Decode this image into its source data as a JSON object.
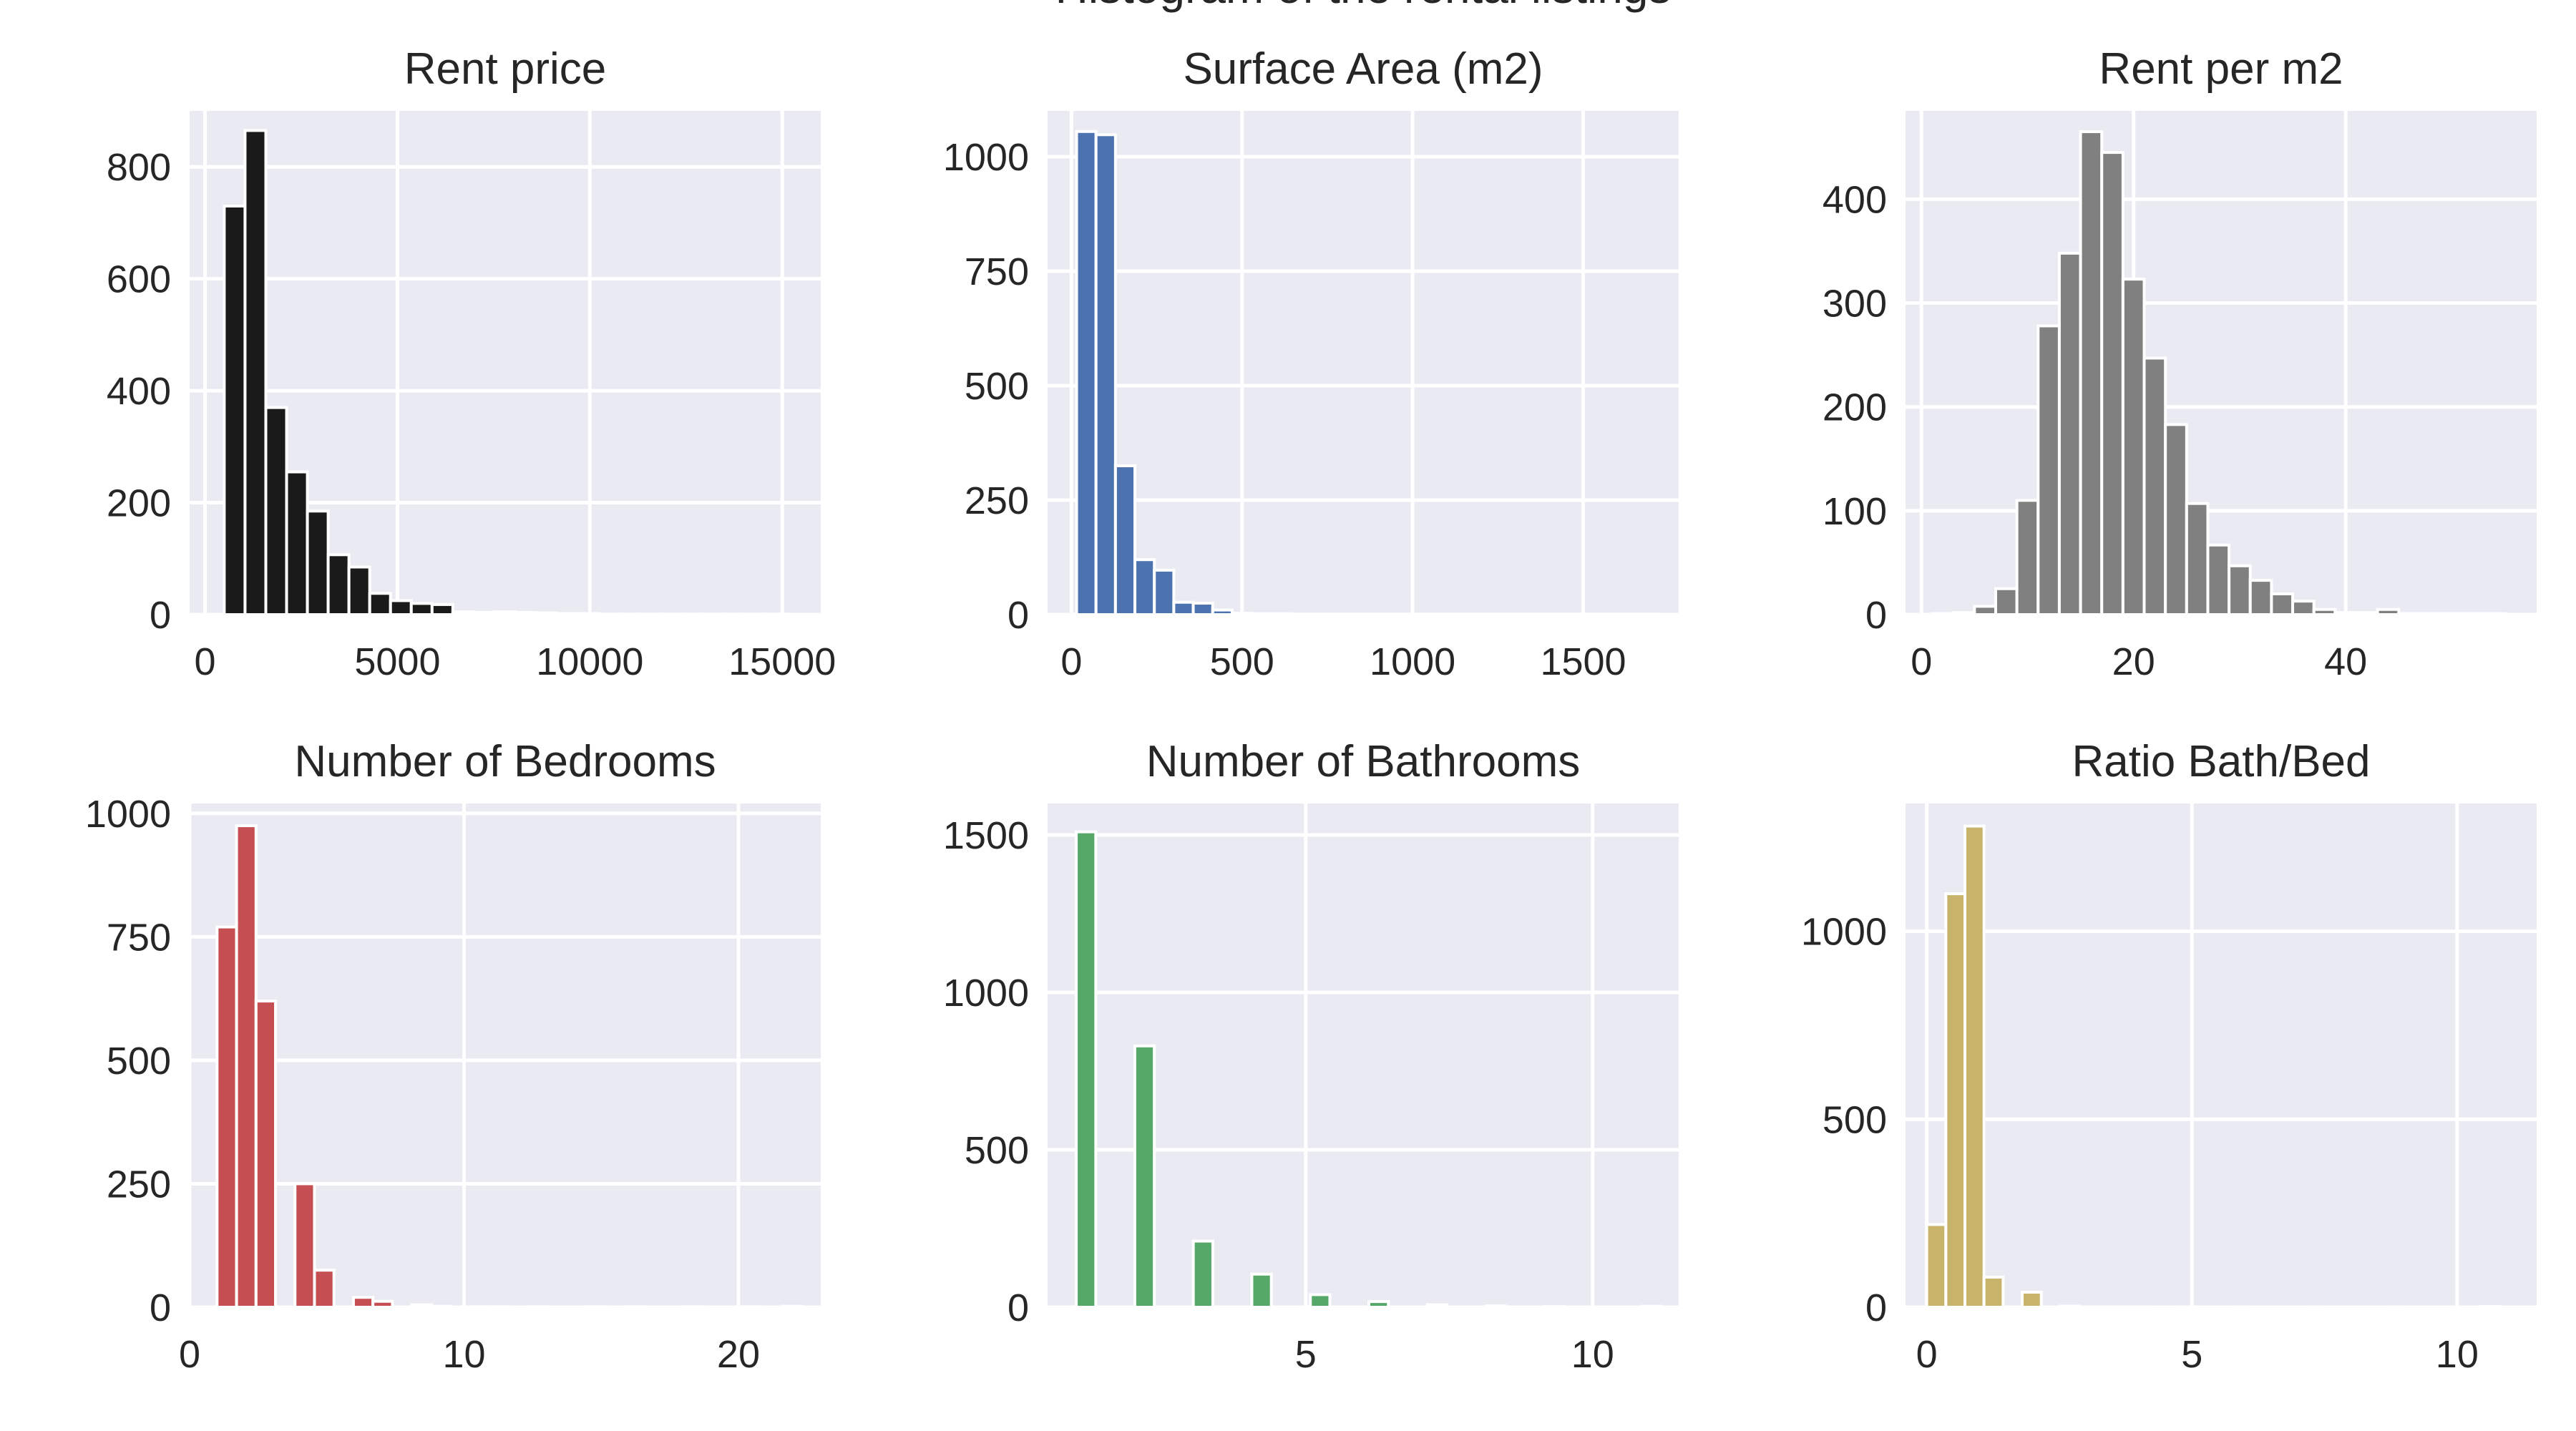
{
  "figure_title": "Histogram of the rental listings",
  "chart_data": [
    {
      "type": "bar",
      "title": "Rent price",
      "color": "#1a1a1a",
      "bin_width": 540,
      "bins": [
        500,
        1040,
        1580,
        2120,
        2660,
        3200,
        3740,
        4280,
        4820,
        5360,
        5900,
        6440,
        6980,
        7520,
        8060,
        8600,
        9140,
        9680,
        10220,
        10760,
        11300,
        11840,
        12380,
        12920,
        13460,
        14000,
        14540
      ],
      "values": [
        730,
        865,
        370,
        255,
        185,
        107,
        85,
        38,
        25,
        20,
        18,
        5,
        4,
        5,
        4,
        3,
        2,
        2,
        1,
        1,
        1,
        1,
        1,
        1,
        1,
        1,
        1
      ],
      "xlim": [
        -400,
        16000
      ],
      "ylim": [
        0,
        900
      ],
      "xticks": [
        0,
        5000,
        10000,
        15000
      ],
      "yticks": [
        0,
        200,
        400,
        600,
        800
      ]
    },
    {
      "type": "bar",
      "title": "Surface Area (m2)",
      "color": "#4c72b0",
      "bin_width": 57,
      "bins": [
        15,
        72,
        129,
        186,
        243,
        300,
        357,
        414,
        471,
        528,
        585,
        642,
        699,
        756,
        813,
        870,
        927,
        984,
        1041,
        1098,
        1155,
        1212,
        1269,
        1326,
        1383,
        1440,
        1497,
        1554,
        1611,
        1668
      ],
      "values": [
        1055,
        1048,
        325,
        120,
        97,
        27,
        25,
        10,
        3,
        2,
        2,
        1,
        1,
        1,
        1,
        1,
        1,
        1,
        1,
        1,
        1,
        1,
        1,
        1,
        1,
        1,
        1,
        1,
        1,
        1
      ],
      "xlim": [
        -70,
        1780
      ],
      "ylim": [
        0,
        1100
      ],
      "xticks": [
        0,
        500,
        1000,
        1500
      ],
      "yticks": [
        0,
        250,
        500,
        750,
        1000
      ]
    },
    {
      "type": "bar",
      "title": "Rent per m2",
      "color": "#808080",
      "bin_width": 2,
      "bins": [
        1,
        3,
        5,
        7,
        9,
        11,
        13,
        15,
        17,
        19,
        21,
        23,
        25,
        27,
        29,
        31,
        33,
        35,
        37,
        39,
        41,
        43,
        45,
        47,
        49,
        51,
        53
      ],
      "values": [
        1,
        2,
        8,
        25,
        110,
        278,
        348,
        465,
        445,
        323,
        247,
        183,
        107,
        67,
        47,
        33,
        20,
        13,
        5,
        2,
        2,
        5,
        1,
        1,
        1,
        1,
        1
      ],
      "xlim": [
        -1.5,
        58
      ],
      "ylim": [
        0,
        485
      ],
      "xticks": [
        0,
        20,
        40
      ],
      "yticks": [
        0,
        100,
        200,
        300,
        400
      ]
    },
    {
      "type": "bar",
      "title": "Number of Bedrooms",
      "color": "#c44e52",
      "bin_width": 0.71,
      "bins": [
        1,
        1.71,
        2.42,
        3.13,
        3.84,
        4.55,
        5.26,
        5.97,
        6.68,
        7.39,
        8.1,
        8.81,
        9.52,
        10.23,
        10.94,
        11.65,
        12.36,
        13.07,
        13.78,
        14.49,
        15.2,
        15.91,
        16.62,
        17.33,
        18.04,
        18.75,
        19.46,
        20.17,
        20.88,
        21.59
      ],
      "values": [
        770,
        975,
        620,
        0,
        250,
        75,
        0,
        20,
        12,
        0,
        5,
        2,
        0,
        1,
        1,
        0,
        1,
        0,
        0,
        1,
        0,
        1,
        0,
        0,
        1,
        0,
        0,
        1,
        0,
        2
      ],
      "xlim": [
        0,
        23
      ],
      "ylim": [
        0,
        1020
      ],
      "xticks": [
        0,
        10,
        20
      ],
      "yticks": [
        0,
        250,
        500,
        750,
        1000
      ]
    },
    {
      "type": "bar",
      "title": "Number of Bathrooms",
      "color": "#55a868",
      "bin_width": 0.34,
      "bins": [
        1,
        1.34,
        1.68,
        2.02,
        2.36,
        2.7,
        3.04,
        3.38,
        3.72,
        4.06,
        4.4,
        4.74,
        5.08,
        5.42,
        5.76,
        6.1,
        6.44,
        6.78,
        7.12,
        7.46,
        7.8,
        8.14,
        8.48,
        8.82,
        9.16,
        9.5,
        9.84,
        10.18,
        10.52,
        10.86
      ],
      "values": [
        1510,
        0,
        0,
        830,
        0,
        0,
        210,
        0,
        0,
        105,
        0,
        0,
        40,
        0,
        0,
        18,
        0,
        0,
        8,
        0,
        0,
        4,
        0,
        0,
        2,
        0,
        0,
        1,
        0,
        3
      ],
      "xlim": [
        0.5,
        11.5
      ],
      "ylim": [
        0,
        1600
      ],
      "xticks": [
        5,
        10
      ],
      "yticks": [
        0,
        500,
        1000,
        1500
      ]
    },
    {
      "type": "bar",
      "title": "Ratio Bath/Bed",
      "color": "#c7b36a",
      "bin_width": 0.36,
      "bins": [
        0,
        0.36,
        0.72,
        1.08,
        1.44,
        1.8,
        2.16,
        2.52,
        2.88,
        3.24,
        3.6,
        3.96,
        4.32,
        4.68,
        5.04,
        5.4,
        5.76,
        6.12,
        6.48,
        6.84,
        7.2,
        7.56,
        7.92,
        8.28,
        8.64,
        9,
        9.36,
        9.72,
        10.08,
        10.44
      ],
      "values": [
        220,
        1100,
        1280,
        80,
        0,
        40,
        0,
        3,
        1,
        1,
        1,
        1,
        0,
        1,
        0,
        0,
        1,
        0,
        0,
        0,
        1,
        0,
        0,
        0,
        1,
        0,
        0,
        0,
        0,
        2
      ],
      "xlim": [
        -0.4,
        11.5
      ],
      "ylim": [
        0,
        1340
      ],
      "xticks": [
        0,
        5,
        10
      ],
      "yticks": [
        0,
        500,
        1000
      ]
    }
  ]
}
